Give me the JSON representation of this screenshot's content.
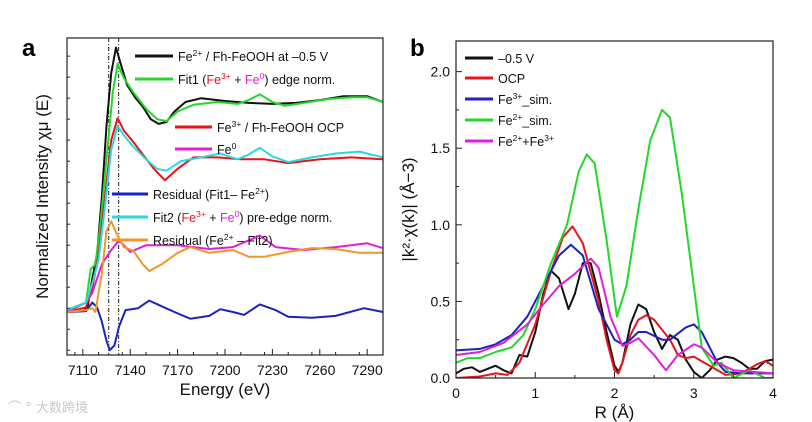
{
  "watermark": "大数跨境",
  "chart_data": [
    {
      "panel_label": "a",
      "type": "line",
      "xlabel": "Energy (eV)",
      "ylabel": "Normalized Intensity χμ (E)",
      "xlim": [
        7100,
        7300
      ],
      "ylim": [
        -0.45,
        2.87
      ],
      "xticks": [
        7110,
        7140,
        7170,
        7200,
        7230,
        7260,
        7290
      ],
      "yticks_labeled": false,
      "vlines": [
        7126.4,
        7132.7
      ],
      "legend": [
        {
          "series": 0,
          "parts": [
            {
              "t": "Fe"
            },
            {
              "t": "2+",
              "sup": true
            },
            {
              "t": " / Fh-FeOOH at –0.5 V"
            }
          ]
        },
        {
          "series": 1,
          "parts": [
            {
              "t": "Fit1 ("
            },
            {
              "t": "Fe",
              "color": "#e8141b"
            },
            {
              "t": "3+",
              "sup": true,
              "color": "#e8141b"
            },
            {
              "t": " + "
            },
            {
              "t": "Fe",
              "color": "#e020d8"
            },
            {
              "t": "0",
              "sup": true,
              "color": "#e020d8"
            },
            {
              "t": ") edge norm."
            }
          ]
        },
        {
          "series": 2,
          "parts": [
            {
              "t": "Fe"
            },
            {
              "t": "3+",
              "sup": true
            },
            {
              "t": " / Fh-FeOOH OCP"
            }
          ]
        },
        {
          "series": 3,
          "parts": [
            {
              "t": "Fe"
            },
            {
              "t": "0",
              "sup": true
            }
          ]
        },
        {
          "series": 4,
          "parts": [
            {
              "t": "Residual (Fit1– Fe"
            },
            {
              "t": "2+",
              "sup": true
            },
            {
              "t": ")"
            }
          ]
        },
        {
          "series": 5,
          "parts": [
            {
              "t": "Fit2 ("
            },
            {
              "t": "Fe",
              "color": "#e8141b"
            },
            {
              "t": "3+",
              "sup": true,
              "color": "#e8141b"
            },
            {
              "t": " + "
            },
            {
              "t": "Fe",
              "color": "#e020d8"
            },
            {
              "t": "0",
              "sup": true,
              "color": "#e020d8"
            },
            {
              "t": ") pre-edge norm."
            }
          ]
        },
        {
          "series": 6,
          "parts": [
            {
              "t": "Residual (Fe"
            },
            {
              "t": "2+",
              "sup": true
            },
            {
              "t": " – Fit2)"
            }
          ]
        }
      ],
      "series": [
        {
          "name": "Fe2+ / Fh-FeOOH at -0.5 V",
          "color": "#111111",
          "x": [
            7100,
            7110,
            7113,
            7116,
            7119,
            7122,
            7125,
            7128,
            7131,
            7134,
            7138,
            7143,
            7148,
            7153,
            7158,
            7163,
            7168,
            7175,
            7185,
            7200,
            7215,
            7230,
            7245,
            7260,
            7275,
            7290,
            7300
          ],
          "y": [
            0,
            0.01,
            0.05,
            0.35,
            0.6,
            1.2,
            1.95,
            2.5,
            2.77,
            2.6,
            2.38,
            2.25,
            2.15,
            2.02,
            1.97,
            1.99,
            2.1,
            2.2,
            2.24,
            2.21,
            2.19,
            2.18,
            2.19,
            2.22,
            2.26,
            2.26,
            2.2
          ]
        },
        {
          "name": "Fit1 (Fe3+ + Fe0) edge norm.",
          "color": "#22d82a",
          "x": [
            7100,
            7112,
            7115,
            7118,
            7121,
            7125,
            7129,
            7132,
            7136,
            7142,
            7150,
            7157,
            7163,
            7170,
            7180,
            7195,
            7208,
            7215,
            7222,
            7230,
            7238,
            7250,
            7265,
            7280,
            7290,
            7300
          ],
          "y": [
            0.02,
            0.1,
            0.45,
            0.5,
            0.9,
            1.6,
            2.3,
            2.6,
            2.45,
            2.3,
            2.13,
            2.02,
            2.0,
            2.1,
            2.17,
            2.2,
            2.18,
            2.22,
            2.28,
            2.2,
            2.16,
            2.19,
            2.23,
            2.25,
            2.25,
            2.2
          ]
        },
        {
          "name": "Fe3+ / Fh-FeOOH OCP",
          "color": "#e8141b",
          "x": [
            7100,
            7112,
            7116,
            7120,
            7124,
            7128,
            7132,
            7136,
            7142,
            7148,
            7155,
            7162,
            7170,
            7180,
            7195,
            7210,
            7225,
            7240,
            7260,
            7280,
            7300
          ],
          "y": [
            0,
            0.05,
            0.25,
            0.6,
            1.2,
            1.8,
            2.03,
            1.9,
            1.78,
            1.65,
            1.5,
            1.38,
            1.5,
            1.62,
            1.62,
            1.6,
            1.6,
            1.56,
            1.6,
            1.62,
            1.6
          ]
        },
        {
          "name": "Fe0",
          "color": "#e020d8",
          "x": [
            7100,
            7112,
            7116,
            7122,
            7128,
            7133,
            7140,
            7150,
            7170,
            7190,
            7205,
            7222,
            7232,
            7250,
            7270,
            7290,
            7300
          ],
          "y": [
            0,
            0.1,
            0.2,
            0.5,
            0.65,
            0.75,
            0.63,
            0.7,
            0.7,
            0.66,
            0.68,
            0.8,
            0.68,
            0.65,
            0.68,
            0.72,
            0.67
          ]
        },
        {
          "name": "Residual (Fit1 - Fe2+)",
          "color": "#1a22c0",
          "x": [
            7100,
            7112,
            7116,
            7119,
            7122,
            7125,
            7127,
            7130,
            7133,
            7137,
            7145,
            7152,
            7160,
            7168,
            7178,
            7190,
            7197,
            7205,
            7212,
            7222,
            7232,
            7240,
            7255,
            7270,
            7288,
            7300
          ],
          "y": [
            0,
            0.01,
            0.1,
            0.05,
            -0.1,
            -0.3,
            -0.4,
            -0.35,
            -0.15,
            0.02,
            0.04,
            0.12,
            0.06,
            0.0,
            -0.07,
            -0.04,
            0.03,
            0.0,
            -0.03,
            0.08,
            0.02,
            -0.05,
            -0.06,
            -0.04,
            0.04,
            0.0
          ]
        },
        {
          "name": "Fit2 (Fe3+ + Fe0) pre-edge norm.",
          "color": "#2ad8e0",
          "x": [
            7100,
            7112,
            7116,
            7120,
            7124,
            7128,
            7132,
            7136,
            7142,
            7150,
            7157,
            7163,
            7172,
            7185,
            7197,
            7208,
            7215,
            7222,
            7230,
            7240,
            7255,
            7270,
            7285,
            7300
          ],
          "y": [
            0.02,
            0.1,
            0.3,
            0.55,
            1.1,
            1.7,
            1.95,
            1.85,
            1.73,
            1.6,
            1.5,
            1.48,
            1.58,
            1.62,
            1.66,
            1.6,
            1.65,
            1.72,
            1.63,
            1.57,
            1.62,
            1.66,
            1.68,
            1.62
          ]
        },
        {
          "name": "Residual (Fe2+ - Fit2)",
          "color": "#f0962a",
          "x": [
            7100,
            7112,
            7116,
            7118,
            7122,
            7125,
            7128,
            7132,
            7136,
            7142,
            7148,
            7152,
            7160,
            7170,
            7178,
            7190,
            7205,
            7215,
            7225,
            7240,
            7255,
            7270,
            7285,
            7300
          ],
          "y": [
            0,
            0.02,
            0.04,
            0.0,
            0.4,
            0.85,
            0.95,
            0.8,
            0.68,
            0.64,
            0.5,
            0.43,
            0.5,
            0.62,
            0.68,
            0.62,
            0.65,
            0.58,
            0.58,
            0.63,
            0.67,
            0.66,
            0.62,
            0.62
          ]
        }
      ]
    },
    {
      "panel_label": "b",
      "type": "line",
      "xlabel": "R (Å)",
      "ylabel": "|k²·χ(k)| (Å−3)",
      "xlim": [
        0,
        4
      ],
      "ylim": [
        0,
        2.2
      ],
      "xticks": [
        "0",
        "1",
        "2",
        "3",
        "4"
      ],
      "yticks": [
        "0.0",
        "0.5",
        "1.0",
        "1.5",
        "2.0"
      ],
      "legend": [
        {
          "series": 0,
          "parts": [
            {
              "t": "–0.5 V"
            }
          ]
        },
        {
          "series": 1,
          "parts": [
            {
              "t": "OCP"
            }
          ]
        },
        {
          "series": 2,
          "parts": [
            {
              "t": "Fe"
            },
            {
              "t": "3+",
              "sup": true
            },
            {
              "t": "_sim."
            }
          ]
        },
        {
          "series": 3,
          "parts": [
            {
              "t": "Fe"
            },
            {
              "t": "2+",
              "sup": true
            },
            {
              "t": "_sim."
            }
          ]
        },
        {
          "series": 4,
          "parts": [
            {
              "t": "Fe"
            },
            {
              "t": "2+",
              "sup": true
            },
            {
              "t": "+Fe"
            },
            {
              "t": "3+",
              "sup": true
            }
          ]
        }
      ],
      "series": [
        {
          "name": "-0.5 V",
          "color": "#111111",
          "x": [
            0,
            0.1,
            0.2,
            0.3,
            0.4,
            0.5,
            0.6,
            0.7,
            0.8,
            0.9,
            1.0,
            1.1,
            1.2,
            1.3,
            1.42,
            1.5,
            1.6,
            1.7,
            1.8,
            1.9,
            2.0,
            2.05,
            2.1,
            2.2,
            2.3,
            2.4,
            2.5,
            2.6,
            2.7,
            2.8,
            2.9,
            3.0,
            3.1,
            3.2,
            3.3,
            3.4,
            3.5,
            3.6,
            3.7,
            3.8,
            3.9,
            4.0
          ],
          "y": [
            0.03,
            0.06,
            0.07,
            0.04,
            0.06,
            0.08,
            0.05,
            0.03,
            0.15,
            0.14,
            0.3,
            0.55,
            0.7,
            0.65,
            0.45,
            0.55,
            0.75,
            0.75,
            0.55,
            0.3,
            0.08,
            0.04,
            0.1,
            0.35,
            0.48,
            0.45,
            0.3,
            0.19,
            0.28,
            0.25,
            0.12,
            0.04,
            0.0,
            0.05,
            0.12,
            0.14,
            0.13,
            0.1,
            0.06,
            0.06,
            0.11,
            0.12
          ]
        },
        {
          "name": "OCP",
          "color": "#e8141b",
          "x": [
            0,
            0.3,
            0.5,
            0.65,
            0.8,
            1.0,
            1.2,
            1.35,
            1.47,
            1.6,
            1.8,
            1.9,
            2.0,
            2.05,
            2.1,
            2.2,
            2.3,
            2.4,
            2.5,
            2.7,
            2.8,
            2.9,
            3.0,
            3.2,
            3.4,
            3.6,
            3.8,
            3.9,
            4.0
          ],
          "y": [
            0,
            0.01,
            0.03,
            0.02,
            0.1,
            0.35,
            0.7,
            0.92,
            0.99,
            0.88,
            0.5,
            0.25,
            0.05,
            0.03,
            0.1,
            0.28,
            0.38,
            0.41,
            0.38,
            0.25,
            0.15,
            0.13,
            0.14,
            0.08,
            0.02,
            0.03,
            0.09,
            0.11,
            0.08
          ]
        },
        {
          "name": "Fe3+_sim.",
          "color": "#1a22c0",
          "x": [
            0,
            0.3,
            0.5,
            0.7,
            0.9,
            1.1,
            1.3,
            1.45,
            1.6,
            1.8,
            2.0,
            2.1,
            2.2,
            2.3,
            2.4,
            2.6,
            2.7,
            2.9,
            3.0,
            3.1,
            3.3,
            3.4,
            3.6,
            4.0
          ],
          "y": [
            0.18,
            0.19,
            0.22,
            0.28,
            0.4,
            0.6,
            0.8,
            0.87,
            0.8,
            0.45,
            0.25,
            0.22,
            0.25,
            0.3,
            0.3,
            0.25,
            0.25,
            0.33,
            0.35,
            0.3,
            0.1,
            0.04,
            0.03,
            0.03
          ]
        },
        {
          "name": "Fe2+_sim.",
          "color": "#22d82a",
          "x": [
            0,
            0.15,
            0.3,
            0.5,
            0.7,
            0.85,
            1.0,
            1.2,
            1.4,
            1.55,
            1.65,
            1.75,
            1.9,
            2.03,
            2.15,
            2.3,
            2.45,
            2.6,
            2.7,
            2.85,
            3.0,
            3.1,
            3.25,
            3.35,
            3.5,
            3.7,
            3.9,
            4.0
          ],
          "y": [
            0.1,
            0.13,
            0.13,
            0.17,
            0.2,
            0.28,
            0.45,
            0.75,
            1.0,
            1.35,
            1.46,
            1.4,
            0.9,
            0.4,
            0.6,
            1.1,
            1.55,
            1.75,
            1.7,
            1.2,
            0.6,
            0.2,
            0.08,
            0.1,
            0.0,
            0.05,
            0.0,
            0.0
          ]
        },
        {
          "name": "Fe2+ + Fe3+",
          "color": "#e020d8",
          "x": [
            0,
            0.3,
            0.6,
            0.9,
            1.1,
            1.3,
            1.5,
            1.7,
            1.8,
            1.95,
            2.1,
            2.2,
            2.3,
            2.5,
            2.65,
            2.8,
            3.0,
            3.1,
            3.3,
            3.5,
            4.0
          ],
          "y": [
            0.15,
            0.17,
            0.23,
            0.35,
            0.48,
            0.6,
            0.68,
            0.78,
            0.72,
            0.4,
            0.21,
            0.23,
            0.26,
            0.15,
            0.05,
            0.15,
            0.22,
            0.2,
            0.1,
            0.05,
            0.03
          ]
        }
      ]
    }
  ]
}
